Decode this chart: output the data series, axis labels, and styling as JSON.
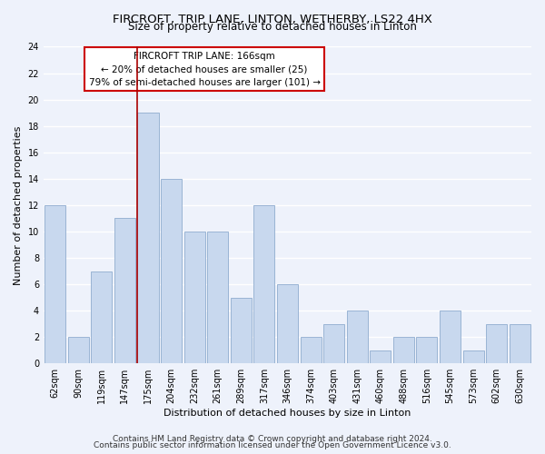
{
  "title": "FIRCROFT, TRIP LANE, LINTON, WETHERBY, LS22 4HX",
  "subtitle": "Size of property relative to detached houses in Linton",
  "xlabel": "Distribution of detached houses by size in Linton",
  "ylabel": "Number of detached properties",
  "categories": [
    "62sqm",
    "90sqm",
    "119sqm",
    "147sqm",
    "175sqm",
    "204sqm",
    "232sqm",
    "261sqm",
    "289sqm",
    "317sqm",
    "346sqm",
    "374sqm",
    "403sqm",
    "431sqm",
    "460sqm",
    "488sqm",
    "516sqm",
    "545sqm",
    "573sqm",
    "602sqm",
    "630sqm"
  ],
  "values": [
    12,
    2,
    7,
    11,
    19,
    14,
    10,
    10,
    5,
    12,
    6,
    2,
    3,
    4,
    1,
    2,
    2,
    4,
    1,
    3,
    3
  ],
  "bar_color": "#c8d8ee",
  "bar_edge_color": "#9ab4d4",
  "highlight_index": 4,
  "highlight_line_color": "#aa0000",
  "ylim": [
    0,
    24
  ],
  "yticks": [
    0,
    2,
    4,
    6,
    8,
    10,
    12,
    14,
    16,
    18,
    20,
    22,
    24
  ],
  "annotation_title": "FIRCROFT TRIP LANE: 166sqm",
  "annotation_line1": "← 20% of detached houses are smaller (25)",
  "annotation_line2": "79% of semi-detached houses are larger (101) →",
  "annotation_box_color": "#ffffff",
  "annotation_box_edge": "#cc0000",
  "footer_line1": "Contains HM Land Registry data © Crown copyright and database right 2024.",
  "footer_line2": "Contains public sector information licensed under the Open Government Licence v3.0.",
  "background_color": "#eef2fb",
  "grid_color": "#ffffff",
  "title_fontsize": 9.5,
  "subtitle_fontsize": 8.5,
  "axis_label_fontsize": 8,
  "tick_fontsize": 7,
  "annotation_fontsize": 7.5,
  "footer_fontsize": 6.5
}
